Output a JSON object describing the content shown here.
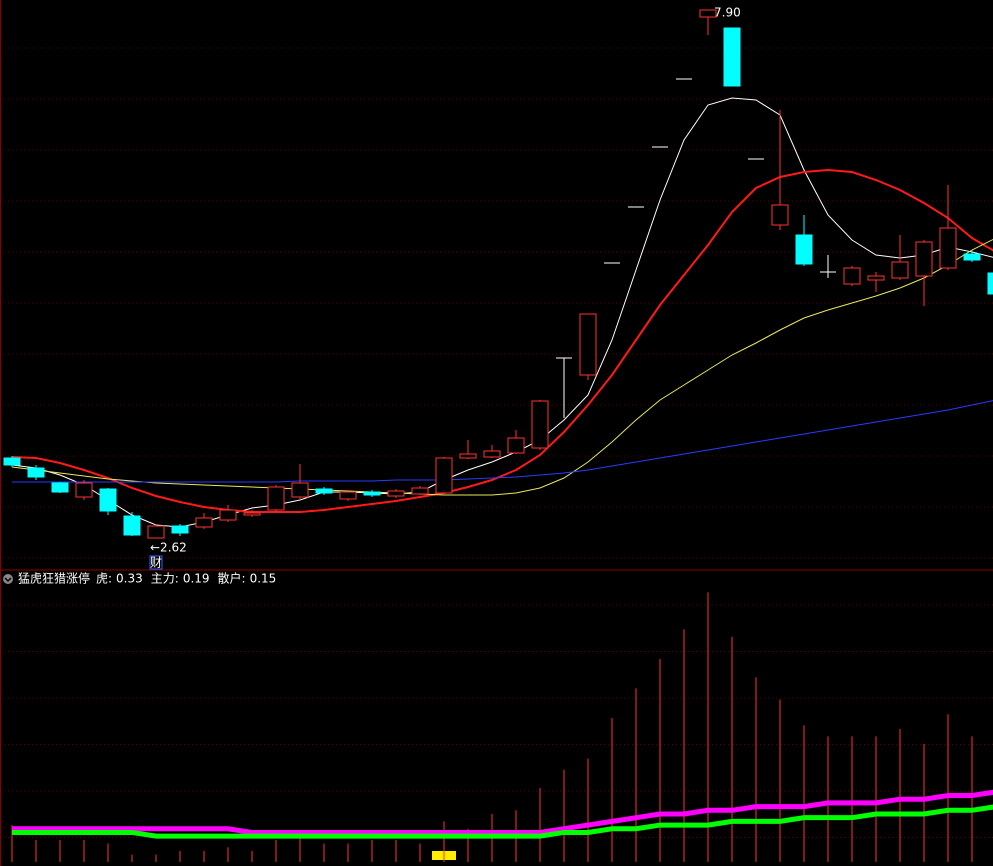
{
  "chart_data": [
    {
      "type": "candlestick",
      "open": [
        3.42,
        3.32,
        3.17,
        3.03,
        3.11,
        2.84,
        2.62,
        2.74,
        2.73,
        2.8,
        2.85,
        2.9,
        3.03,
        3.11,
        3.01,
        3.08,
        3.04,
        3.06,
        3.07,
        3.42,
        3.43,
        3.47,
        3.52,
        4.42,
        4.25,
        5.37,
        5.93,
        6.53,
        7.21,
        7.83,
        7.72,
        6.41,
        5.75,
        5.65,
        5.28,
        5.16,
        5.2,
        5.22,
        5.24,
        5.32,
        5.46,
        5.27
      ],
      "close": [
        3.35,
        3.23,
        3.08,
        3.17,
        2.89,
        2.65,
        2.74,
        2.67,
        2.82,
        2.9,
        2.87,
        3.13,
        3.17,
        3.07,
        3.08,
        3.05,
        3.09,
        3.12,
        3.42,
        3.46,
        3.49,
        3.62,
        3.99,
        4.42,
        4.86,
        5.37,
        5.93,
        6.53,
        7.21,
        7.9,
        7.14,
        6.41,
        5.95,
        5.36,
        5.28,
        5.32,
        5.24,
        5.38,
        5.58,
        5.72,
        5.4,
        5.06
      ],
      "high": [
        3.44,
        3.35,
        3.18,
        3.2,
        3.12,
        2.88,
        2.76,
        2.76,
        2.87,
        2.95,
        2.9,
        3.15,
        3.36,
        3.13,
        3.1,
        3.1,
        3.11,
        3.14,
        3.43,
        3.6,
        3.55,
        3.7,
        4.0,
        4.42,
        4.86,
        5.37,
        5.93,
        6.53,
        7.21,
        7.9,
        7.72,
        6.41,
        6.9,
        5.85,
        5.45,
        5.34,
        5.28,
        5.65,
        5.6,
        6.15,
        5.5,
        5.3
      ],
      "low": [
        3.33,
        3.2,
        3.07,
        3.0,
        2.85,
        2.64,
        2.62,
        2.64,
        2.71,
        2.78,
        2.83,
        2.88,
        3.01,
        3.05,
        2.99,
        3.03,
        3.02,
        3.05,
        3.06,
        3.41,
        3.42,
        3.46,
        3.5,
        3.82,
        4.2,
        5.37,
        5.93,
        6.53,
        7.21,
        7.65,
        7.14,
        6.41,
        5.7,
        5.34,
        5.22,
        5.14,
        5.08,
        5.2,
        4.94,
        5.3,
        5.38,
        5.04
      ],
      "up_color": "#ff3232",
      "down_color": "#00ffff",
      "flat_color": "#ffffff",
      "series": [
        {
          "color": "#ffffff",
          "width": 1,
          "values": [
            3.35,
            3.32,
            3.25,
            3.15,
            3.0,
            2.85,
            2.75,
            2.73,
            2.78,
            2.85,
            2.92,
            2.95,
            3.0,
            3.08,
            3.08,
            3.07,
            3.06,
            3.08,
            3.2,
            3.3,
            3.38,
            3.48,
            3.6,
            3.8,
            4.05,
            4.6,
            5.3,
            6.0,
            6.6,
            6.95,
            7.02,
            7.0,
            6.85,
            6.3,
            5.85,
            5.6,
            5.45,
            5.42,
            5.45,
            5.53,
            5.48,
            5.42
          ]
        },
        {
          "color": "#ff1a1a",
          "width": 2,
          "values": [
            3.43,
            3.42,
            3.37,
            3.3,
            3.22,
            3.12,
            3.04,
            2.98,
            2.93,
            2.9,
            2.88,
            2.88,
            2.88,
            2.9,
            2.93,
            2.96,
            2.99,
            3.03,
            3.07,
            3.13,
            3.2,
            3.3,
            3.45,
            3.68,
            3.95,
            4.25,
            4.6,
            4.95,
            5.25,
            5.55,
            5.88,
            6.12,
            6.23,
            6.28,
            6.3,
            6.28,
            6.2,
            6.1,
            5.97,
            5.82,
            5.62,
            5.48
          ]
        },
        {
          "color": "#e8e85a",
          "width": 1,
          "values": [
            3.33,
            3.3,
            3.27,
            3.24,
            3.21,
            3.19,
            3.17,
            3.16,
            3.15,
            3.14,
            3.13,
            3.12,
            3.11,
            3.1,
            3.09,
            3.08,
            3.07,
            3.06,
            3.05,
            3.05,
            3.05,
            3.07,
            3.12,
            3.22,
            3.38,
            3.58,
            3.8,
            4.0,
            4.15,
            4.3,
            4.45,
            4.57,
            4.7,
            4.82,
            4.9,
            4.97,
            5.04,
            5.12,
            5.22,
            5.35,
            5.5,
            5.62
          ]
        },
        {
          "color": "#2a3cff",
          "width": 1,
          "values": [
            3.18,
            3.18,
            3.18,
            3.18,
            3.18,
            3.18,
            3.18,
            3.18,
            3.18,
            3.18,
            3.18,
            3.18,
            3.19,
            3.19,
            3.19,
            3.19,
            3.2,
            3.2,
            3.2,
            3.21,
            3.22,
            3.23,
            3.25,
            3.27,
            3.3,
            3.34,
            3.38,
            3.42,
            3.46,
            3.5,
            3.54,
            3.58,
            3.62,
            3.66,
            3.7,
            3.74,
            3.78,
            3.82,
            3.86,
            3.9,
            3.95,
            4.0
          ]
        }
      ],
      "ylim": [
        2.3,
        8.0
      ],
      "max_label": "7.90",
      "min_label": "←2.62",
      "badge": "财"
    },
    {
      "type": "bar",
      "title": "猛虎狂猎涨停",
      "series": [
        {
          "name": "虎:",
          "color": "#ff3232",
          "label_color": "#ffffff",
          "style": "bar",
          "values": [
            0.1,
            0.06,
            0.06,
            0.06,
            0.05,
            0.02,
            0.02,
            0.03,
            0.03,
            0.04,
            0.03,
            0.06,
            0.07,
            0.05,
            0.05,
            0.06,
            0.06,
            0.05,
            0.11,
            0.09,
            0.13,
            0.14,
            0.2,
            0.25,
            0.28,
            0.39,
            0.47,
            0.55,
            0.63,
            0.73,
            0.61,
            0.5,
            0.44,
            0.37,
            0.34,
            0.34,
            0.34,
            0.36,
            0.32,
            0.4,
            0.34,
            0.33
          ]
        },
        {
          "name": "主力:",
          "color": "#ff00ff",
          "label_color": "#ff00ff",
          "style": "line",
          "values": [
            0.09,
            0.09,
            0.09,
            0.09,
            0.09,
            0.09,
            0.09,
            0.09,
            0.09,
            0.09,
            0.08,
            0.08,
            0.08,
            0.08,
            0.08,
            0.08,
            0.08,
            0.08,
            0.08,
            0.08,
            0.08,
            0.08,
            0.08,
            0.09,
            0.1,
            0.11,
            0.12,
            0.13,
            0.13,
            0.14,
            0.14,
            0.15,
            0.15,
            0.15,
            0.16,
            0.16,
            0.16,
            0.17,
            0.17,
            0.18,
            0.18,
            0.19
          ]
        },
        {
          "name": "散户:",
          "color": "#00ff00",
          "label_color": "#00ff00",
          "style": "line",
          "values": [
            0.08,
            0.08,
            0.08,
            0.08,
            0.08,
            0.08,
            0.07,
            0.07,
            0.07,
            0.07,
            0.07,
            0.07,
            0.07,
            0.07,
            0.07,
            0.07,
            0.07,
            0.07,
            0.07,
            0.07,
            0.07,
            0.07,
            0.07,
            0.08,
            0.08,
            0.09,
            0.09,
            0.1,
            0.1,
            0.1,
            0.11,
            0.11,
            0.11,
            0.12,
            0.12,
            0.12,
            0.13,
            0.13,
            0.13,
            0.14,
            0.14,
            0.15
          ]
        }
      ],
      "ylim": [
        0,
        0.75
      ]
    }
  ]
}
